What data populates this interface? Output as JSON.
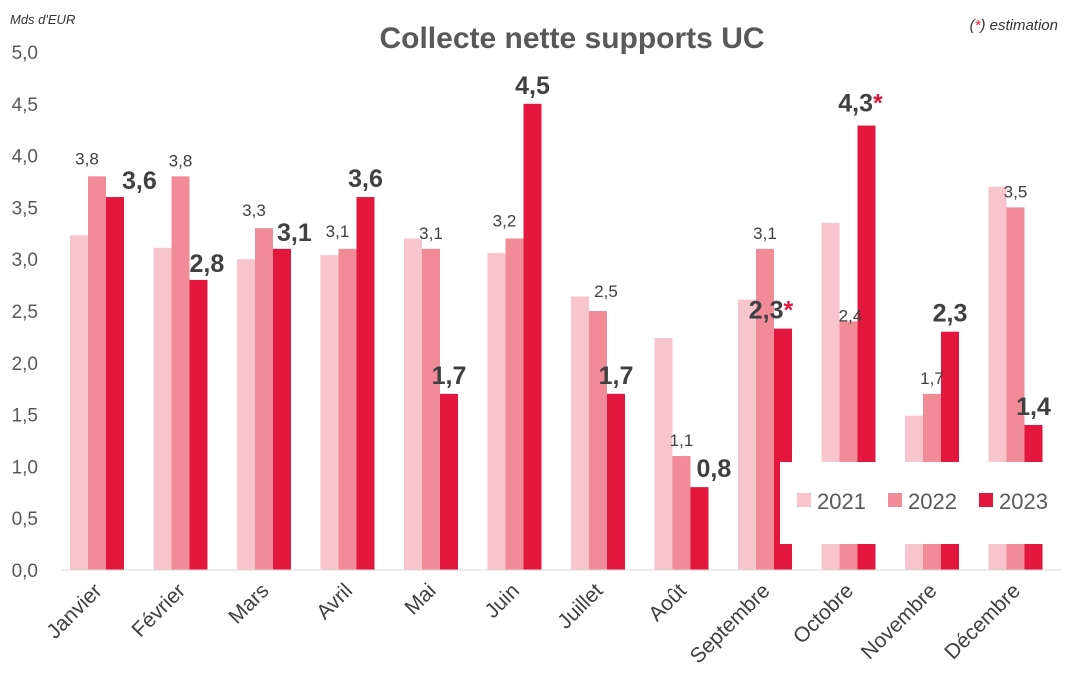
{
  "chart_data": {
    "type": "bar",
    "title": "Collecte nette supports UC",
    "unit_label": "Mds d'EUR",
    "note": {
      "marker": "*",
      "prefix": "(",
      "suffix": ")",
      "text": " estimation"
    },
    "categories": [
      "Janvier",
      "Février",
      "Mars",
      "Avril",
      "Mai",
      "Juin",
      "Juillet",
      "Août",
      "Septembre",
      "Octobre",
      "Novembre",
      "Décembre"
    ],
    "ylim": [
      0,
      5.0
    ],
    "yticks": [
      "0,0",
      "0,5",
      "1,0",
      "1,5",
      "2,0",
      "2,5",
      "3,0",
      "3,5",
      "4,0",
      "4,5",
      "5,0"
    ],
    "grid": false,
    "legend_position": "bottom-right",
    "series": [
      {
        "name": "2021",
        "color": "#f8c5cd",
        "values": [
          3.23,
          3.11,
          3.0,
          3.04,
          3.2,
          3.06,
          2.64,
          2.24,
          2.61,
          3.35,
          1.49,
          3.7
        ],
        "labels": [
          "",
          "",
          "",
          "",
          "",
          "",
          "",
          "",
          "",
          "",
          "",
          ""
        ]
      },
      {
        "name": "2022",
        "color": "#f28b98",
        "values": [
          3.8,
          3.8,
          3.3,
          3.1,
          3.1,
          3.2,
          2.5,
          1.1,
          3.1,
          2.4,
          1.7,
          3.5
        ],
        "labels": [
          "3,8",
          "3,8",
          "3,3",
          "3,1",
          "3,1",
          "3,2",
          "2,5",
          "1,1",
          "3,1",
          "2,4",
          "1,7",
          "3,5"
        ]
      },
      {
        "name": "2023",
        "color": "#e3173e",
        "values": [
          3.6,
          2.8,
          3.1,
          3.6,
          1.7,
          4.5,
          1.7,
          0.8,
          2.33,
          4.29,
          2.3,
          1.4
        ],
        "labels": [
          "3,6",
          "2,8",
          "3,1",
          "3,6",
          "1,7",
          "4,5",
          "1,7",
          "0,8",
          "2,3",
          "4,3",
          "2,3",
          "1,4"
        ],
        "estimated": [
          false,
          false,
          false,
          false,
          false,
          false,
          false,
          false,
          true,
          true,
          false,
          false
        ]
      }
    ]
  }
}
